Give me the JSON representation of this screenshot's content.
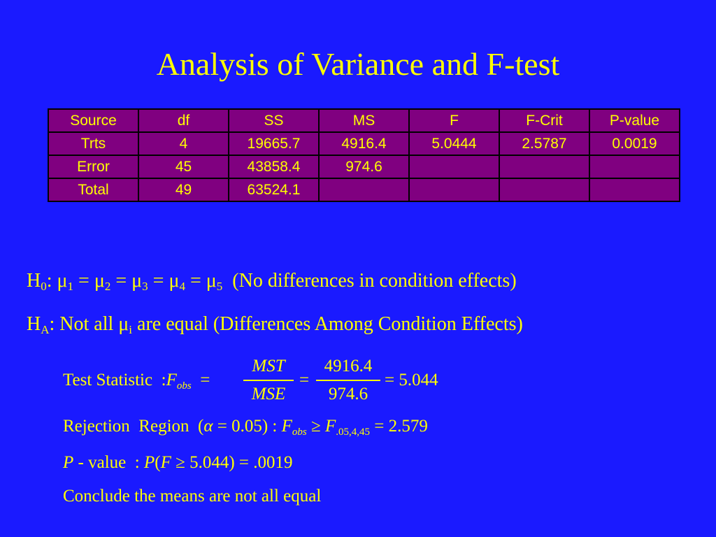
{
  "title": "Analysis of Variance and F-test",
  "table": {
    "headers": [
      "Source",
      "df",
      "SS",
      "MS",
      "F",
      "F-Crit",
      "P-value"
    ],
    "rows": [
      [
        "Trts",
        "4",
        "19665.7",
        "4916.4",
        "5.0444",
        "2.5787",
        "0.0019"
      ],
      [
        "Error",
        "45",
        "43858.4",
        "974.6",
        "",
        "",
        ""
      ],
      [
        "Total",
        "49",
        "63524.1",
        "",
        "",
        "",
        ""
      ]
    ]
  },
  "h0": {
    "H": "H",
    "sub": "0",
    "colon": ":",
    "mu": "μ",
    "eq": "=",
    "subs": [
      "1",
      "2",
      "3",
      "4",
      "5"
    ],
    "note": "(No differences in condition effects)"
  },
  "ha": {
    "H": "H",
    "sub": "A",
    "pre": ": Not all ",
    "mu": "μ",
    "i": "i",
    "post": " are equal (Differences Among Condition Effects)"
  },
  "test_stat": {
    "label": "Test Statistic",
    "colon": ":",
    "F": "F",
    "obs": "obs",
    "eq": "=",
    "num1": "MST",
    "den1": "MSE",
    "num2": "4916.4",
    "den2": "974.6",
    "result": "5.044"
  },
  "rejection": {
    "label": "Rejection  Region",
    "alpha_open": "(",
    "alpha": "α",
    "alpha_rest": " = 0.05) : ",
    "F": "F",
    "obs": "obs",
    "ge": " ≥ ",
    "F2": "F",
    "crit_sub": ".05,4,45",
    "result": " = 2.579"
  },
  "pvalue": {
    "P": "P",
    "dash": " - value  : ",
    "P2": "P",
    "open": "(",
    "F": "F",
    "rest": " ≥ 5.044) = .0019"
  },
  "conclusion": "Conclude  the means are not all equal"
}
